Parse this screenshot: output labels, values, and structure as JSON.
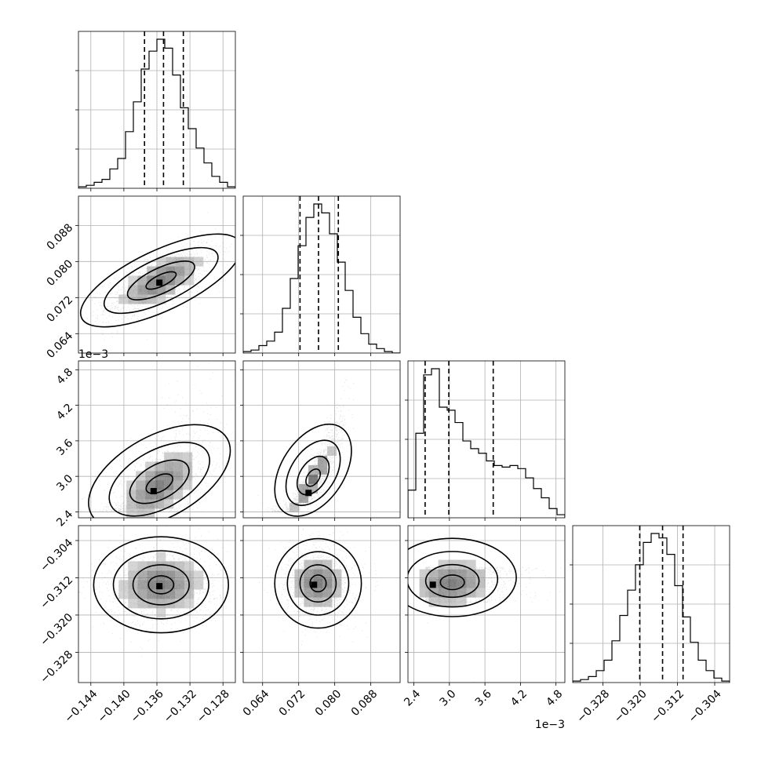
{
  "chart_data": {
    "type": "corner",
    "parameters": [
      {
        "id": "p0",
        "range": [
          -0.1455,
          -0.1265
        ],
        "ticks": [
          -0.144,
          -0.14,
          -0.136,
          -0.132,
          -0.128
        ],
        "tick_labels": [
          "−0.144",
          "−0.140",
          "−0.136",
          "−0.132",
          "−0.128"
        ],
        "offset_label": "",
        "quantiles": [
          -0.1375,
          -0.1352,
          -0.1328
        ],
        "median": -0.1352,
        "histogram": [
          0.01,
          0.02,
          0.04,
          0.06,
          0.13,
          0.2,
          0.38,
          0.58,
          0.8,
          0.92,
          1.0,
          0.94,
          0.76,
          0.54,
          0.4,
          0.27,
          0.17,
          0.08,
          0.04,
          0.01
        ]
      },
      {
        "id": "p1",
        "range": [
          0.0597,
          0.0945
        ],
        "ticks": [
          0.064,
          0.072,
          0.08,
          0.088
        ],
        "tick_labels": [
          "0.064",
          "0.072",
          "0.080",
          "0.088"
        ],
        "offset_label": "",
        "quantiles": [
          0.0723,
          0.0764,
          0.0808
        ],
        "median": 0.0764,
        "histogram": [
          0.01,
          0.02,
          0.05,
          0.08,
          0.14,
          0.3,
          0.5,
          0.72,
          0.91,
          1.0,
          0.94,
          0.8,
          0.61,
          0.42,
          0.24,
          0.13,
          0.06,
          0.03,
          0.01,
          0.0
        ]
      },
      {
        "id": "p2",
        "range": [
          2.3,
          4.95
        ],
        "ticks": [
          2.4,
          3.0,
          3.6,
          4.2,
          4.8
        ],
        "tick_labels": [
          "2.4",
          "3.0",
          "3.6",
          "4.2",
          "4.8"
        ],
        "offset_label": "1e−3",
        "quantiles": [
          2.59,
          2.99,
          3.74
        ],
        "median": 2.99,
        "histogram": [
          0.18,
          0.55,
          0.93,
          0.97,
          0.72,
          0.7,
          0.62,
          0.5,
          0.45,
          0.42,
          0.37,
          0.34,
          0.33,
          0.34,
          0.32,
          0.26,
          0.19,
          0.13,
          0.06,
          0.02
        ]
      },
      {
        "id": "p3",
        "range": [
          -0.3345,
          -0.3008
        ],
        "ticks": [
          -0.328,
          -0.32,
          -0.312,
          -0.304
        ],
        "tick_labels": [
          "−0.328",
          "−0.320",
          "−0.312",
          "−0.304"
        ],
        "offset_label": "",
        "quantiles": [
          -0.3201,
          -0.3152,
          -0.3108
        ],
        "median": -0.3152,
        "histogram": [
          0.01,
          0.02,
          0.04,
          0.08,
          0.15,
          0.28,
          0.45,
          0.62,
          0.79,
          0.94,
          1.0,
          0.97,
          0.86,
          0.65,
          0.44,
          0.27,
          0.15,
          0.08,
          0.03,
          0.01
        ]
      }
    ],
    "pairs": [
      {
        "x": "p0",
        "y": "p1",
        "center": [
          -0.1355,
          0.0758
        ],
        "sd": [
          0.0034,
          0.0042
        ],
        "rho": 0.7,
        "skew": 0.0,
        "peak": [
          -0.1357,
          0.0753
        ]
      },
      {
        "x": "p0",
        "y": "p2",
        "center": [
          -0.1357,
          2.85
        ],
        "sd": [
          0.0031,
          0.4
        ],
        "rho": 0.6,
        "skew": 0.55,
        "peak": [
          -0.1364,
          2.75
        ]
      },
      {
        "x": "p1",
        "y": "p2",
        "center": [
          0.0752,
          2.95
        ],
        "sd": [
          0.0034,
          0.43
        ],
        "rho": 0.92,
        "skew": 0.45,
        "peak": [
          0.0742,
          2.72
        ]
      },
      {
        "x": "p0",
        "y": "p3",
        "center": [
          -0.1355,
          -0.3135
        ],
        "sd": [
          0.0034,
          0.0043
        ],
        "rho": 0.05,
        "skew": 0.0,
        "peak": [
          -0.1357,
          -0.3138
        ]
      },
      {
        "x": "p1",
        "y": "p3",
        "center": [
          0.0763,
          -0.3132
        ],
        "sd": [
          0.004,
          0.004
        ],
        "rho": 0.0,
        "skew": 0.0,
        "peak": [
          0.0754,
          -0.3135
        ]
      },
      {
        "x": "p2",
        "y": "p3",
        "center": [
          3.05,
          -0.3132
        ],
        "sd": [
          0.45,
          0.0035
        ],
        "rho": 0.15,
        "skew": 0.6,
        "peak": [
          2.72,
          -0.3135
        ]
      }
    ]
  }
}
